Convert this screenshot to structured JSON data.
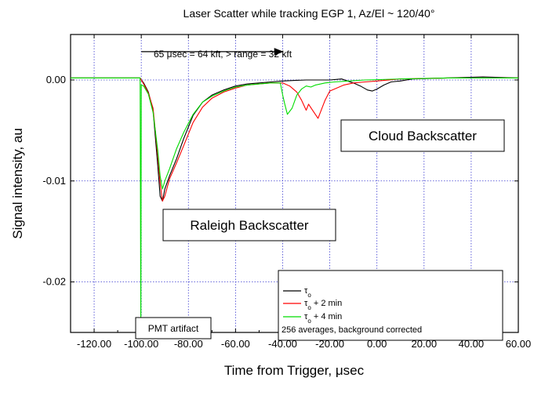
{
  "chart_data": {
    "type": "line",
    "title": "Laser Scatter while tracking EGP 1, Az/El ~ 120/40°",
    "xlabel": "Time from Trigger,  μsec",
    "ylabel": "Signal intensity,  au",
    "xlim": [
      -130,
      60
    ],
    "ylim": [
      -0.025,
      0.0045
    ],
    "grid": true,
    "legend_position": "bottom-right",
    "x_ticks": [
      -120,
      -100,
      -80,
      -60,
      -40,
      -20,
      0,
      20,
      40,
      60
    ],
    "x_tick_labels": [
      "-120.00",
      "-100.00",
      "-80.00",
      "-60.00",
      "-40.00",
      "-20.00",
      "0.00",
      "20.00",
      "40.00",
      "60.00"
    ],
    "y_ticks": [
      0,
      -0.01,
      -0.02
    ],
    "y_tick_labels": [
      "0.00",
      "-0.01",
      "-0.02"
    ],
    "annotations": {
      "range_note": "65 μsec = 64 kft, > range = 32 kft",
      "cloud": "Cloud Backscatter",
      "raleigh": "Raleigh Backscatter",
      "pmt": "PMT artifact"
    },
    "arrow": {
      "x_start": -100,
      "x_end": -40,
      "y": 0.0028
    },
    "legend_footer": "256 averages, background corrected",
    "series": [
      {
        "name": "τo",
        "color": "#000000",
        "points": [
          [
            -130,
            0.0002
          ],
          [
            -100.5,
            0.0002
          ],
          [
            -100,
            0
          ],
          [
            -99,
            -0.0003
          ],
          [
            -97,
            -0.0012
          ],
          [
            -95,
            -0.003
          ],
          [
            -93,
            -0.0085
          ],
          [
            -92,
            -0.0115
          ],
          [
            -91,
            -0.012
          ],
          [
            -90,
            -0.0108
          ],
          [
            -88,
            -0.0095
          ],
          [
            -85,
            -0.0078
          ],
          [
            -82,
            -0.0058
          ],
          [
            -78,
            -0.0035
          ],
          [
            -74,
            -0.0022
          ],
          [
            -70,
            -0.0015
          ],
          [
            -65,
            -0.001
          ],
          [
            -60,
            -0.0006
          ],
          [
            -55,
            -0.0004
          ],
          [
            -50,
            -0.0003
          ],
          [
            -45,
            -0.0002
          ],
          [
            -40,
            -0.0001
          ],
          [
            -35,
            -5e-05
          ],
          [
            -30,
            0
          ],
          [
            -20,
            0
          ],
          [
            -15,
            0.0001
          ],
          [
            -10,
            -0.0003
          ],
          [
            -7,
            -0.0006
          ],
          [
            -4,
            -0.001
          ],
          [
            -2,
            -0.0011
          ],
          [
            0,
            -0.0009
          ],
          [
            3,
            -0.0005
          ],
          [
            6,
            -0.0002
          ],
          [
            10,
            -0.0001
          ],
          [
            15,
            0.0001
          ],
          [
            30,
            0.0002
          ],
          [
            45,
            0.0003
          ],
          [
            60,
            0.0002
          ]
        ]
      },
      {
        "name": "τo + 2 min",
        "color": "#ff0000",
        "points": [
          [
            -130,
            0.0002
          ],
          [
            -100.5,
            0.0002
          ],
          [
            -100,
            0
          ],
          [
            -99,
            -0.0004
          ],
          [
            -97,
            -0.0013
          ],
          [
            -95,
            -0.0028
          ],
          [
            -93,
            -0.0075
          ],
          [
            -92,
            -0.0102
          ],
          [
            -91,
            -0.012
          ],
          [
            -90,
            -0.0115
          ],
          [
            -88,
            -0.0098
          ],
          [
            -85,
            -0.0082
          ],
          [
            -82,
            -0.0065
          ],
          [
            -78,
            -0.0042
          ],
          [
            -74,
            -0.0027
          ],
          [
            -70,
            -0.0018
          ],
          [
            -65,
            -0.0012
          ],
          [
            -60,
            -0.0008
          ],
          [
            -55,
            -0.0005
          ],
          [
            -50,
            -0.0004
          ],
          [
            -45,
            -0.0003
          ],
          [
            -40,
            -0.0003
          ],
          [
            -37,
            -0.0006
          ],
          [
            -34,
            -0.0012
          ],
          [
            -32,
            -0.002
          ],
          [
            -30,
            -0.003
          ],
          [
            -29,
            -0.0024
          ],
          [
            -27,
            -0.0031
          ],
          [
            -25,
            -0.0038
          ],
          [
            -24,
            -0.0032
          ],
          [
            -22,
            -0.002
          ],
          [
            -20,
            -0.0011
          ],
          [
            -17,
            -0.0008
          ],
          [
            -14,
            -0.0005
          ],
          [
            -10,
            -0.0003
          ],
          [
            -5,
            -0.0002
          ],
          [
            0,
            -0.0001
          ],
          [
            10,
            0.0001
          ],
          [
            30,
            0.0002
          ],
          [
            60,
            0.0002
          ]
        ]
      },
      {
        "name": "τo + 4 min",
        "color": "#00dd00",
        "points": [
          [
            -130,
            0.0002
          ],
          [
            -100.5,
            0.0002
          ],
          [
            -100.2,
            -0.025
          ],
          [
            -100,
            -0.0005
          ],
          [
            -99,
            -0.0006
          ],
          [
            -97,
            -0.0014
          ],
          [
            -95,
            -0.0032
          ],
          [
            -93,
            -0.007
          ],
          [
            -92,
            -0.0095
          ],
          [
            -91,
            -0.0108
          ],
          [
            -90,
            -0.01
          ],
          [
            -88,
            -0.0088
          ],
          [
            -85,
            -0.0068
          ],
          [
            -82,
            -0.0052
          ],
          [
            -78,
            -0.0034
          ],
          [
            -74,
            -0.0022
          ],
          [
            -70,
            -0.0016
          ],
          [
            -65,
            -0.0011
          ],
          [
            -60,
            -0.0007
          ],
          [
            -55,
            -0.0005
          ],
          [
            -50,
            -0.0004
          ],
          [
            -45,
            -0.0003
          ],
          [
            -41,
            -0.0003
          ],
          [
            -40,
            -0.0015
          ],
          [
            -39,
            -0.0025
          ],
          [
            -38,
            -0.0034
          ],
          [
            -36,
            -0.0028
          ],
          [
            -34,
            -0.0015
          ],
          [
            -32,
            -0.0009
          ],
          [
            -30,
            -0.0006
          ],
          [
            -28,
            -0.0007
          ],
          [
            -26,
            -0.0005
          ],
          [
            -22,
            -0.0003
          ],
          [
            -18,
            -0.0002
          ],
          [
            -12,
            -0.0001
          ],
          [
            -5,
            0
          ],
          [
            10,
            0.0001
          ],
          [
            30,
            0.0002
          ],
          [
            60,
            0.0002
          ]
        ]
      }
    ]
  }
}
